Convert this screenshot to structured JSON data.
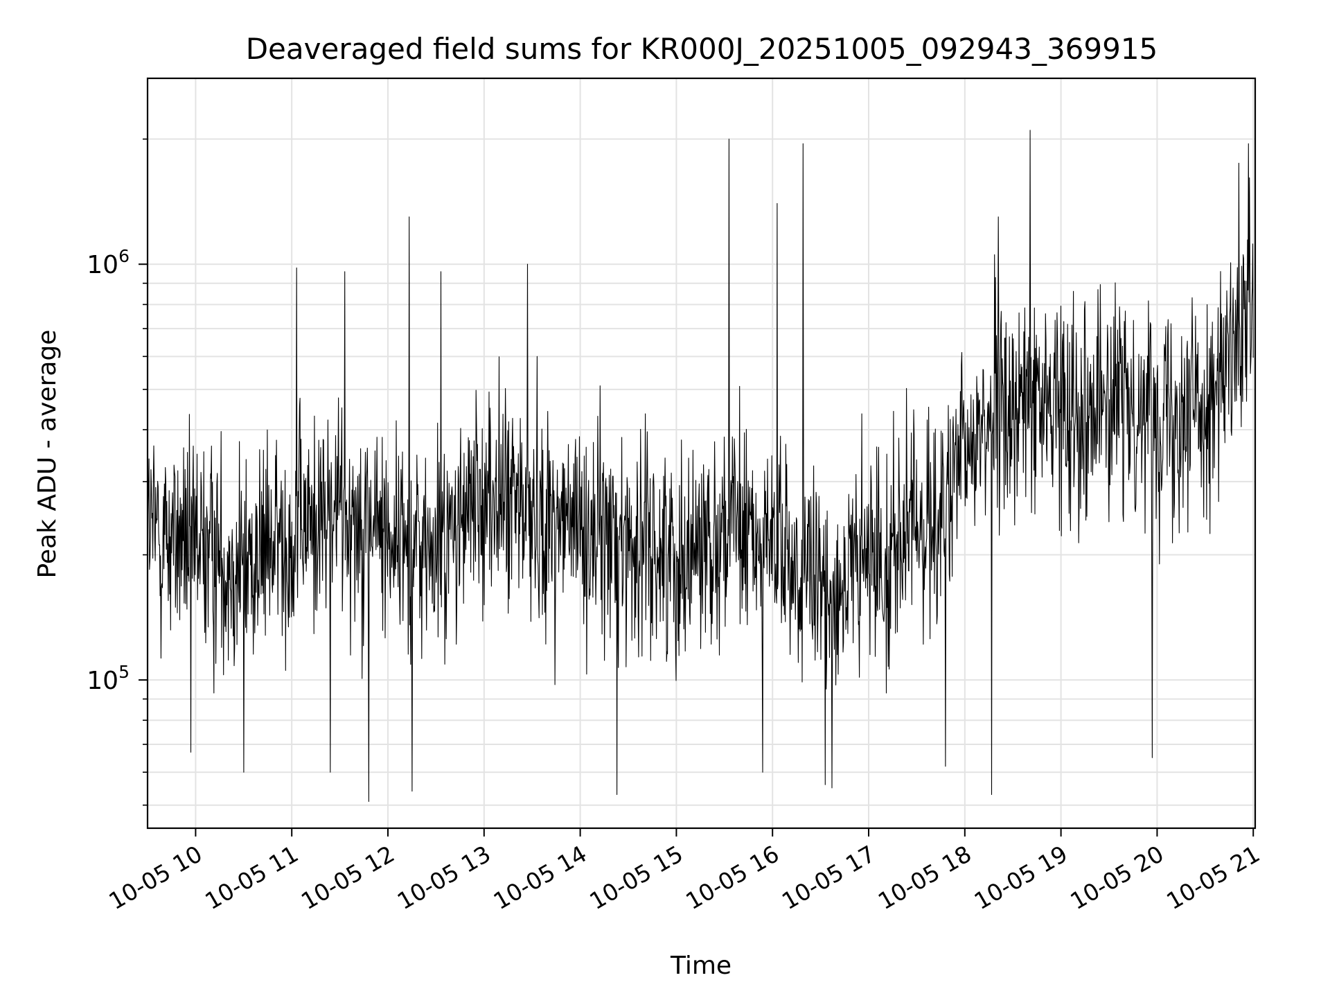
{
  "chart_data": {
    "type": "line",
    "title": "Deaveraged field sums for KR000J_20251005_092943_369915",
    "xlabel": "Time",
    "ylabel": "Peak ADU - average",
    "yscale": "log",
    "ylim": [
      44000,
      2800000
    ],
    "xlim_hours": [
      9.5,
      21.02
    ],
    "grid": true,
    "line_color": "#000000",
    "x_ticks": [
      {
        "value": 10,
        "label": "10-05 10"
      },
      {
        "value": 11,
        "label": "10-05 11"
      },
      {
        "value": 12,
        "label": "10-05 12"
      },
      {
        "value": 13,
        "label": "10-05 13"
      },
      {
        "value": 14,
        "label": "10-05 14"
      },
      {
        "value": 15,
        "label": "10-05 15"
      },
      {
        "value": 16,
        "label": "10-05 16"
      },
      {
        "value": 17,
        "label": "10-05 17"
      },
      {
        "value": 18,
        "label": "10-05 18"
      },
      {
        "value": 19,
        "label": "10-05 19"
      },
      {
        "value": 20,
        "label": "10-05 20"
      },
      {
        "value": 21,
        "label": "10-05 21"
      }
    ],
    "y_major_ticks": [
      {
        "value": 100000,
        "base": "10",
        "exp": "5"
      },
      {
        "value": 1000000,
        "base": "10",
        "exp": "6"
      }
    ],
    "y_minor_ticks": [
      50000,
      60000,
      70000,
      80000,
      90000,
      200000,
      300000,
      400000,
      500000,
      600000,
      700000,
      800000,
      900000,
      2000000
    ],
    "series": [
      {
        "name": "field sums",
        "x_start_hour": 9.5,
        "x_end_hour": 21.0,
        "points": 2300,
        "baseline": [
          [
            9.5,
            230000
          ],
          [
            10.5,
            190000
          ],
          [
            11.5,
            260000
          ],
          [
            12.5,
            200000
          ],
          [
            13.0,
            280000
          ],
          [
            14.0,
            230000
          ],
          [
            15.0,
            200000
          ],
          [
            15.5,
            230000
          ],
          [
            16.0,
            210000
          ],
          [
            16.5,
            160000
          ],
          [
            17.0,
            190000
          ],
          [
            17.8,
            260000
          ],
          [
            18.2,
            430000
          ],
          [
            19.0,
            470000
          ],
          [
            20.0,
            450000
          ],
          [
            20.6,
            480000
          ],
          [
            21.0,
            750000
          ]
        ],
        "spikes_up": [
          [
            15.55,
            2000000
          ],
          [
            16.32,
            1950000
          ],
          [
            18.68,
            2100000
          ],
          [
            20.95,
            1950000
          ],
          [
            16.05,
            1400000
          ],
          [
            12.22,
            1300000
          ],
          [
            18.35,
            1300000
          ],
          [
            13.45,
            1000000
          ],
          [
            11.05,
            980000
          ],
          [
            11.55,
            960000
          ],
          [
            12.55,
            960000
          ],
          [
            20.85,
            1750000
          ]
        ],
        "spikes_down": [
          [
            11.8,
            51000
          ],
          [
            12.25,
            54000
          ],
          [
            14.38,
            53000
          ],
          [
            16.55,
            56000
          ],
          [
            16.62,
            55000
          ],
          [
            17.8,
            62000
          ],
          [
            18.28,
            53000
          ],
          [
            15.9,
            60000
          ],
          [
            9.95,
            67000
          ],
          [
            10.5,
            60000
          ],
          [
            19.95,
            65000
          ],
          [
            11.4,
            60000
          ]
        ]
      }
    ]
  }
}
